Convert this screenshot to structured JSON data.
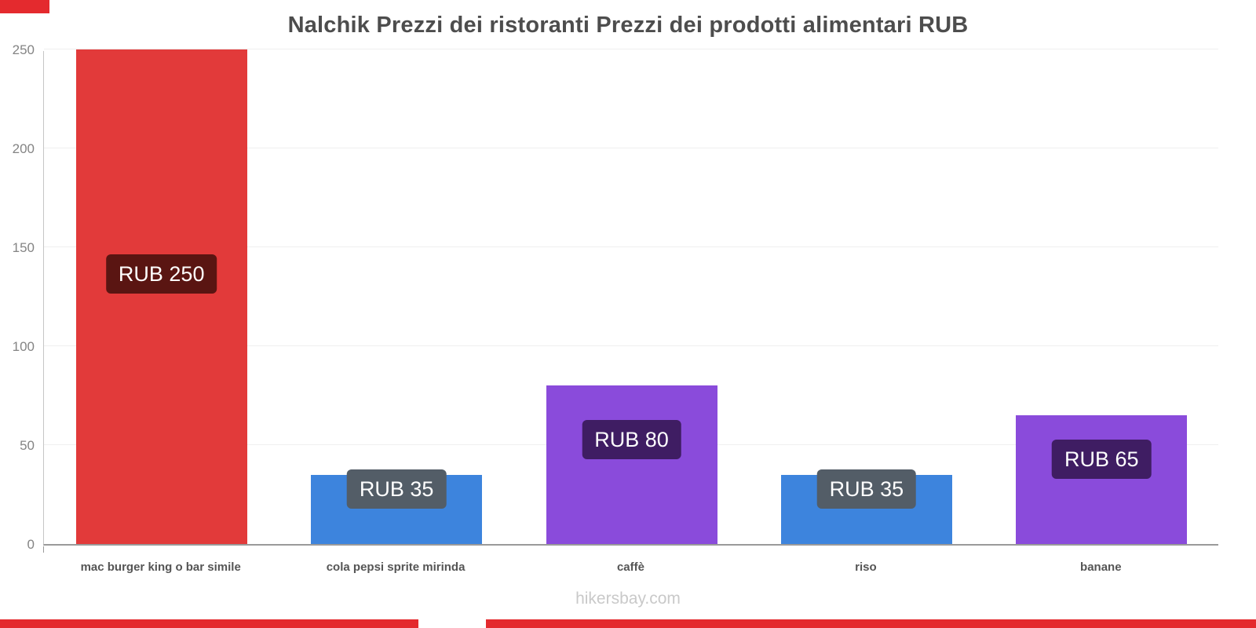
{
  "page": {
    "title": "Nalchik Prezzi dei ristoranti Prezzi dei prodotti alimentari RUB",
    "footer": "hikersbay.com",
    "accent_color": "#e42a2e",
    "background_color": "#ffffff"
  },
  "chart_data": {
    "type": "bar",
    "title": "Nalchik Prezzi dei ristoranti Prezzi dei prodotti alimentari RUB",
    "categories": [
      "mac burger king o bar simile",
      "cola pepsi sprite mirinda",
      "caffè",
      "riso",
      "banane"
    ],
    "values": [
      250,
      35,
      80,
      35,
      65
    ],
    "value_labels": [
      "RUB 250",
      "RUB 35",
      "RUB 80",
      "RUB 35",
      "RUB 65"
    ],
    "bar_colors": [
      "#e23a3a",
      "#3d84dd",
      "#8a4bdb",
      "#3d84dd",
      "#8a4bdb"
    ],
    "label_bg_colors": [
      "#5a1512",
      "#535d67",
      "#3f1d63",
      "#535d67",
      "#3f1d63"
    ],
    "currency": "RUB",
    "xlabel": "",
    "ylabel": "",
    "ylim": [
      0,
      250
    ],
    "yticks": [
      0,
      50,
      100,
      150,
      200,
      250
    ],
    "grid": true,
    "legend": false,
    "watermark": "hikersbay.com"
  }
}
